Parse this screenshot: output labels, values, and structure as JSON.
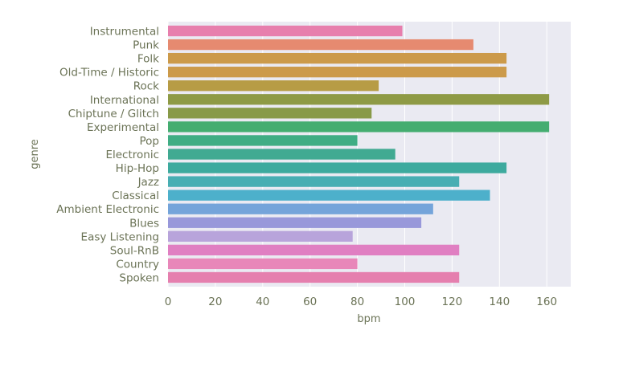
{
  "chart_data": {
    "type": "bar",
    "orientation": "horizontal",
    "title": "",
    "xlabel": "bpm",
    "ylabel": "genre",
    "xlim": [
      0,
      170
    ],
    "xticks": [
      0,
      20,
      40,
      60,
      80,
      100,
      120,
      140,
      160
    ],
    "grid": true,
    "legend": "none",
    "categories": [
      "Instrumental",
      "Punk",
      "Folk",
      "Old-Time / Historic",
      "Rock",
      "International",
      "Chiptune / Glitch",
      "Experimental",
      "Pop",
      "Electronic",
      "Hip-Hop",
      "Jazz",
      "Classical",
      "Ambient Electronic",
      "Blues",
      "Easy Listening",
      "Soul-RnB",
      "Country",
      "Spoken"
    ],
    "values": [
      99,
      129,
      143,
      143,
      89,
      161,
      86,
      161,
      80,
      96,
      143,
      123,
      136,
      112,
      107,
      78,
      123,
      80,
      123
    ],
    "colors": [
      "#e77fad",
      "#e68a70",
      "#cc9a4a",
      "#cc9a4a",
      "#b79c45",
      "#8e9a45",
      "#889a48",
      "#44ad70",
      "#40ad84",
      "#41aa92",
      "#3daa9e",
      "#48aeb3",
      "#4db0cb",
      "#74a4da",
      "#9898da",
      "#b8a4db",
      "#e07fc2",
      "#e887b9",
      "#e57fae"
    ]
  }
}
